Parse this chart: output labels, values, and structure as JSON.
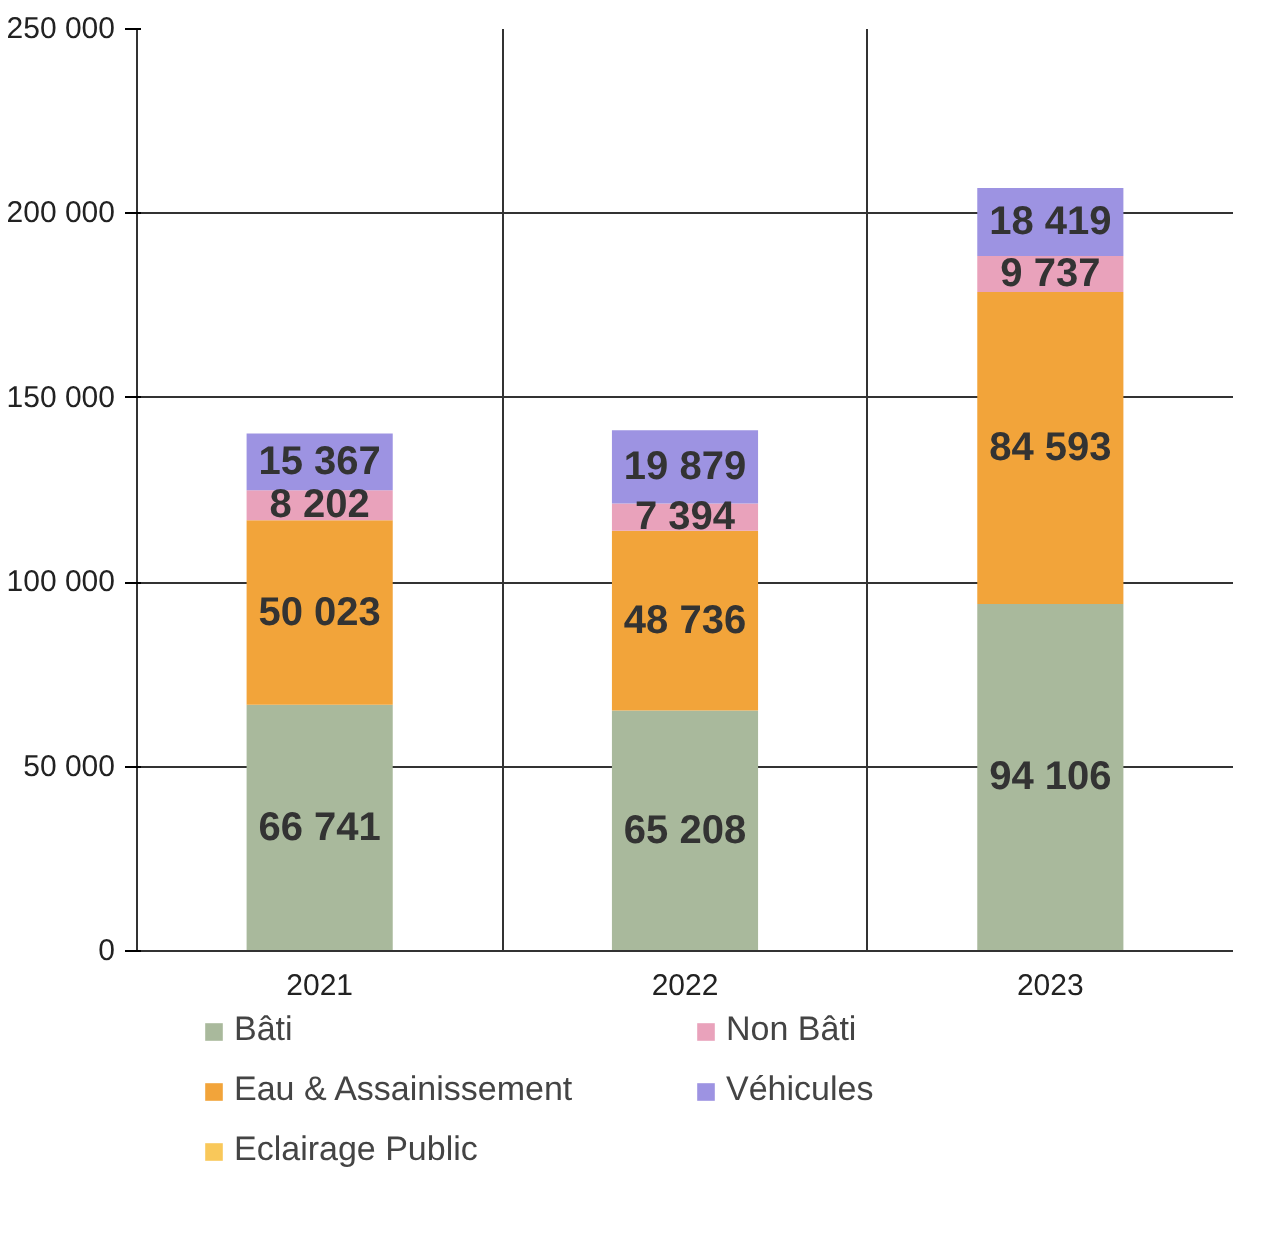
{
  "chart_data": {
    "type": "bar",
    "stacked": true,
    "categories": [
      "2021",
      "2022",
      "2023"
    ],
    "series": [
      {
        "name": "Bâti",
        "color": "#a9b99c",
        "values": [
          66741,
          65208,
          94106
        ],
        "value_labels": [
          "66 741",
          "65 208",
          "94 106"
        ]
      },
      {
        "name": "Eau & Assainissement",
        "color": "#f2a43a",
        "values": [
          50023,
          48736,
          84593
        ],
        "value_labels": [
          "50 023",
          "48 736",
          "84 593"
        ]
      },
      {
        "name": "Eclairage Public",
        "color": "#f9c85a",
        "values": [
          0,
          0,
          0
        ],
        "value_labels": [
          null,
          null,
          null
        ]
      },
      {
        "name": "Non Bâti",
        "color": "#e9a2bb",
        "values": [
          8202,
          7394,
          9737
        ],
        "value_labels": [
          "8 202",
          "7 394",
          "9 737"
        ]
      },
      {
        "name": "Véhicules",
        "color": "#9d93e2",
        "values": [
          15367,
          19879,
          18419
        ],
        "value_labels": [
          "15 367",
          "19 879",
          "18 419"
        ]
      }
    ],
    "ylim": [
      0,
      250000
    ],
    "yticks": [
      0,
      {
        "value": 50000,
        "label": "50 000"
      },
      {
        "value": 100000,
        "label": "100 000"
      },
      {
        "value": 150000,
        "label": "150 000"
      },
      {
        "value": 200000,
        "label": "200 000"
      },
      {
        "value": 250000,
        "label": "250 000"
      }
    ],
    "grid": true,
    "legend": "bottom"
  }
}
